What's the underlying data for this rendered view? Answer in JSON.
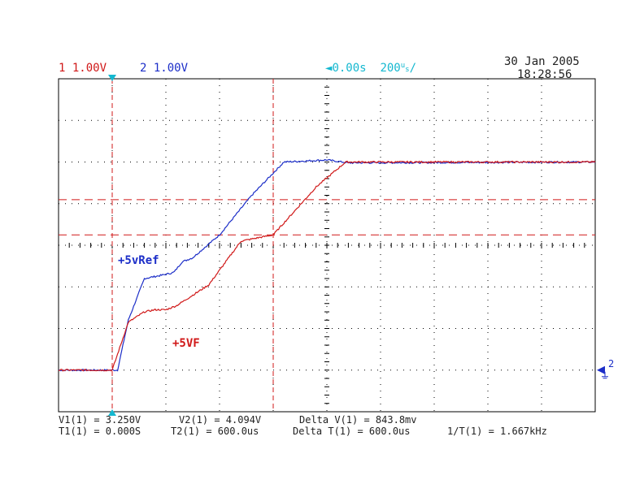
{
  "header": {
    "ch1": {
      "num": "1",
      "scale": "1.00V",
      "color": "#d01818"
    },
    "ch2": {
      "num": "2",
      "scale": "1.00V",
      "color": "#1c2ec8"
    },
    "timebase": {
      "delay": "0.00s",
      "scale": "200",
      "unit_top": "u",
      "unit_bottom": "s",
      "slash": "/"
    },
    "date": "30 Jan 2005",
    "time": "18:28:56"
  },
  "labels": {
    "ref": "+5vRef",
    "vf": "+5VF"
  },
  "ground_marker": "2",
  "measurements": {
    "v1": "V1(1) = 3.250V",
    "v2": "V2(1) = 4.094V",
    "delta_v": "Delta V(1) = 843.8mv",
    "t1": "T1(1) = 0.000S",
    "t2": "T2(1) = 600.0us",
    "delta_t": "Delta T(1) = 600.0us",
    "inv_t": "1/T(1) = 1.667kHz"
  },
  "chart_data": {
    "type": "line",
    "xlabel": "",
    "ylabel": "",
    "x_unit": "us",
    "y_unit": "V",
    "xlim": [
      -200,
      1800
    ],
    "ylim": [
      -1,
      7
    ],
    "grid": true,
    "series": [
      {
        "name": "+5vRef",
        "color": "#1c2ec8",
        "x": [
          -200,
          20,
          60,
          120,
          200,
          230,
          260,
          300,
          400,
          520,
          640,
          800,
          880,
          1800
        ],
        "y": [
          0.0,
          0.0,
          1.2,
          2.2,
          2.3,
          2.35,
          2.6,
          2.7,
          3.25,
          4.2,
          5.0,
          5.05,
          4.98,
          5.0
        ]
      },
      {
        "name": "+5VF",
        "color": "#d01818",
        "x": [
          -200,
          0,
          60,
          120,
          160,
          200,
          240,
          300,
          360,
          480,
          600,
          760,
          870,
          1800
        ],
        "y": [
          0.0,
          0.0,
          1.15,
          1.4,
          1.45,
          1.45,
          1.55,
          1.8,
          2.05,
          3.1,
          3.25,
          4.4,
          5.0,
          5.0
        ]
      }
    ],
    "cursors": {
      "t1": 0,
      "t2": 600,
      "v1": 3.25,
      "v2": 4.094,
      "ground": 0,
      "trigger": 0
    }
  }
}
